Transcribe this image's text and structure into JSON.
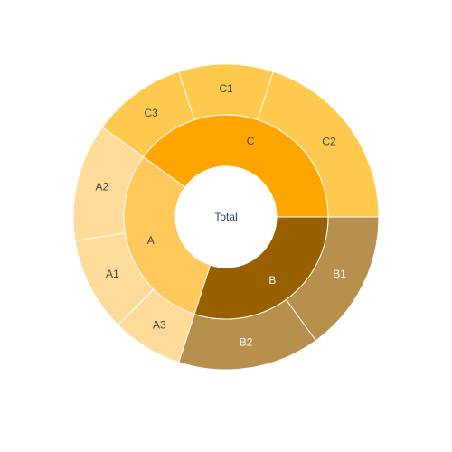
{
  "chart_data": {
    "type": "sunburst",
    "root": {
      "label": "Total"
    },
    "inner": [
      {
        "label": "A",
        "color": "#FFC85A",
        "label_color": "#444444"
      },
      {
        "label": "B",
        "color": "#996000",
        "label_color": "#ffffff"
      },
      {
        "label": "C",
        "color": "#FFA500",
        "label_color": "#444444"
      }
    ],
    "outer": [
      {
        "label": "A1",
        "parent": "A",
        "value": 1,
        "color": "#FFDB99",
        "label_color": "#444444"
      },
      {
        "label": "A2",
        "parent": "A",
        "value": 1.25,
        "color": "#FFDB99",
        "label_color": "#444444"
      },
      {
        "label": "A3",
        "parent": "A",
        "value": 0.75,
        "color": "#FFDB99",
        "label_color": "#444444"
      },
      {
        "label": "B1",
        "parent": "B",
        "value": 1.5,
        "color": "#B8904D",
        "label_color": "#ffffff"
      },
      {
        "label": "B2",
        "parent": "B",
        "value": 1.5,
        "color": "#B8904D",
        "label_color": "#ffffff"
      },
      {
        "label": "C1",
        "parent": "C",
        "value": 1,
        "color": "#FFC94D",
        "label_color": "#444444"
      },
      {
        "label": "C2",
        "parent": "C",
        "value": 2,
        "color": "#FFC94D",
        "label_color": "#444444"
      },
      {
        "label": "C3",
        "parent": "C",
        "value": 1,
        "color": "#FFC94D",
        "label_color": "#444444"
      }
    ],
    "outer_order_clockwise_from_east": [
      "B1",
      "B2",
      "A3",
      "A1",
      "A2",
      "C3",
      "C1",
      "C2"
    ],
    "inner_order_clockwise_from_east": [
      "B",
      "A",
      "C"
    ]
  }
}
